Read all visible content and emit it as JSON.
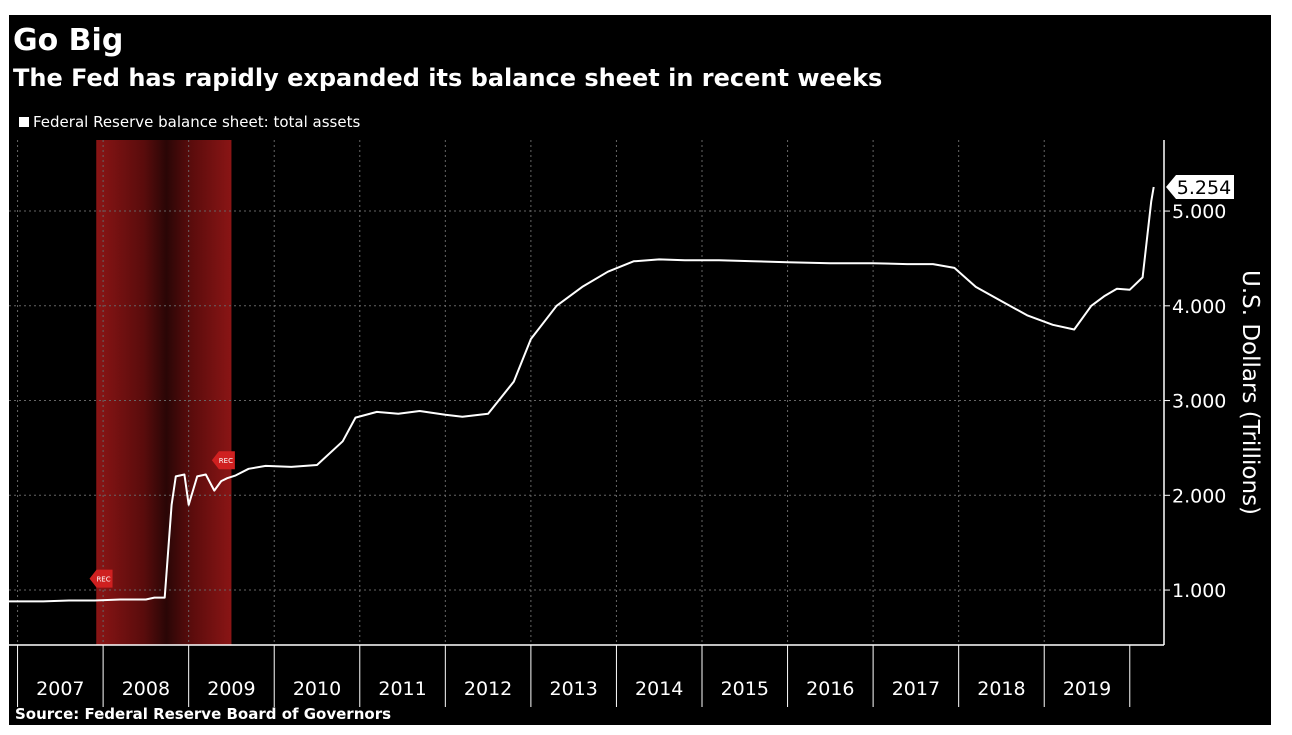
{
  "chart_data": {
    "type": "line",
    "title": "Go Big",
    "subtitle": "The Fed has rapidly expanded its balance sheet in recent weeks",
    "ylabel": "U.S. Dollars (Trillions)",
    "xlabel": "",
    "ylim": [
      0.42,
      5.75
    ],
    "xlim": [
      2006.9,
      2020.4
    ],
    "yticks": [
      1.0,
      2.0,
      3.0,
      4.0,
      5.0
    ],
    "ytick_labels": [
      "1.000",
      "2.000",
      "3.000",
      "4.000",
      "5.000"
    ],
    "xtick_labels": [
      "2007",
      "2008",
      "2009",
      "2010",
      "2011",
      "2012",
      "2013",
      "2014",
      "2015",
      "2016",
      "2017",
      "2018",
      "2019"
    ],
    "grid": true,
    "legend_position": "top-left",
    "series": [
      {
        "name": "Federal Reserve balance sheet: total assets",
        "color": "#ffffff",
        "x": [
          2006.9,
          2007.3,
          2007.6,
          2007.9,
          2008.2,
          2008.5,
          2008.6,
          2008.72,
          2008.8,
          2008.85,
          2008.95,
          2009.0,
          2009.1,
          2009.2,
          2009.3,
          2009.38,
          2009.45,
          2009.55,
          2009.7,
          2009.9,
          2010.2,
          2010.5,
          2010.8,
          2010.95,
          2011.2,
          2011.45,
          2011.7,
          2011.85,
          2012.0,
          2012.2,
          2012.5,
          2012.8,
          2013.0,
          2013.3,
          2013.6,
          2013.9,
          2014.2,
          2014.5,
          2014.8,
          2015.2,
          2015.6,
          2016.0,
          2016.5,
          2017.0,
          2017.4,
          2017.7,
          2017.95,
          2018.2,
          2018.5,
          2018.8,
          2019.1,
          2019.35,
          2019.55,
          2019.7,
          2019.85,
          2020.0,
          2020.15,
          2020.2,
          2020.25,
          2020.28
        ],
        "values": [
          0.88,
          0.88,
          0.89,
          0.89,
          0.9,
          0.9,
          0.92,
          0.92,
          1.9,
          2.2,
          2.22,
          1.9,
          2.2,
          2.22,
          2.05,
          2.15,
          2.18,
          2.21,
          2.28,
          2.31,
          2.3,
          2.32,
          2.57,
          2.82,
          2.88,
          2.86,
          2.89,
          2.87,
          2.85,
          2.83,
          2.86,
          3.2,
          3.65,
          4.0,
          4.2,
          4.36,
          4.47,
          4.49,
          4.48,
          4.48,
          4.47,
          4.46,
          4.45,
          4.45,
          4.44,
          4.44,
          4.4,
          4.2,
          4.05,
          3.9,
          3.8,
          3.75,
          4.0,
          4.1,
          4.18,
          4.17,
          4.3,
          4.7,
          5.1,
          5.254
        ]
      }
    ],
    "annotations": [
      {
        "type": "last-value-label",
        "value": "5.254"
      },
      {
        "type": "recession-shading",
        "start": 2007.92,
        "end": 2009.5,
        "label": "REC"
      }
    ],
    "source": "Source: Federal Reserve Board of Governors"
  },
  "colors": {
    "background": "#000000",
    "line": "#ffffff",
    "grid": "#666666",
    "axis": "#ffffff",
    "recession": "#7a0f0f",
    "rec_marker": "#cf2020"
  }
}
